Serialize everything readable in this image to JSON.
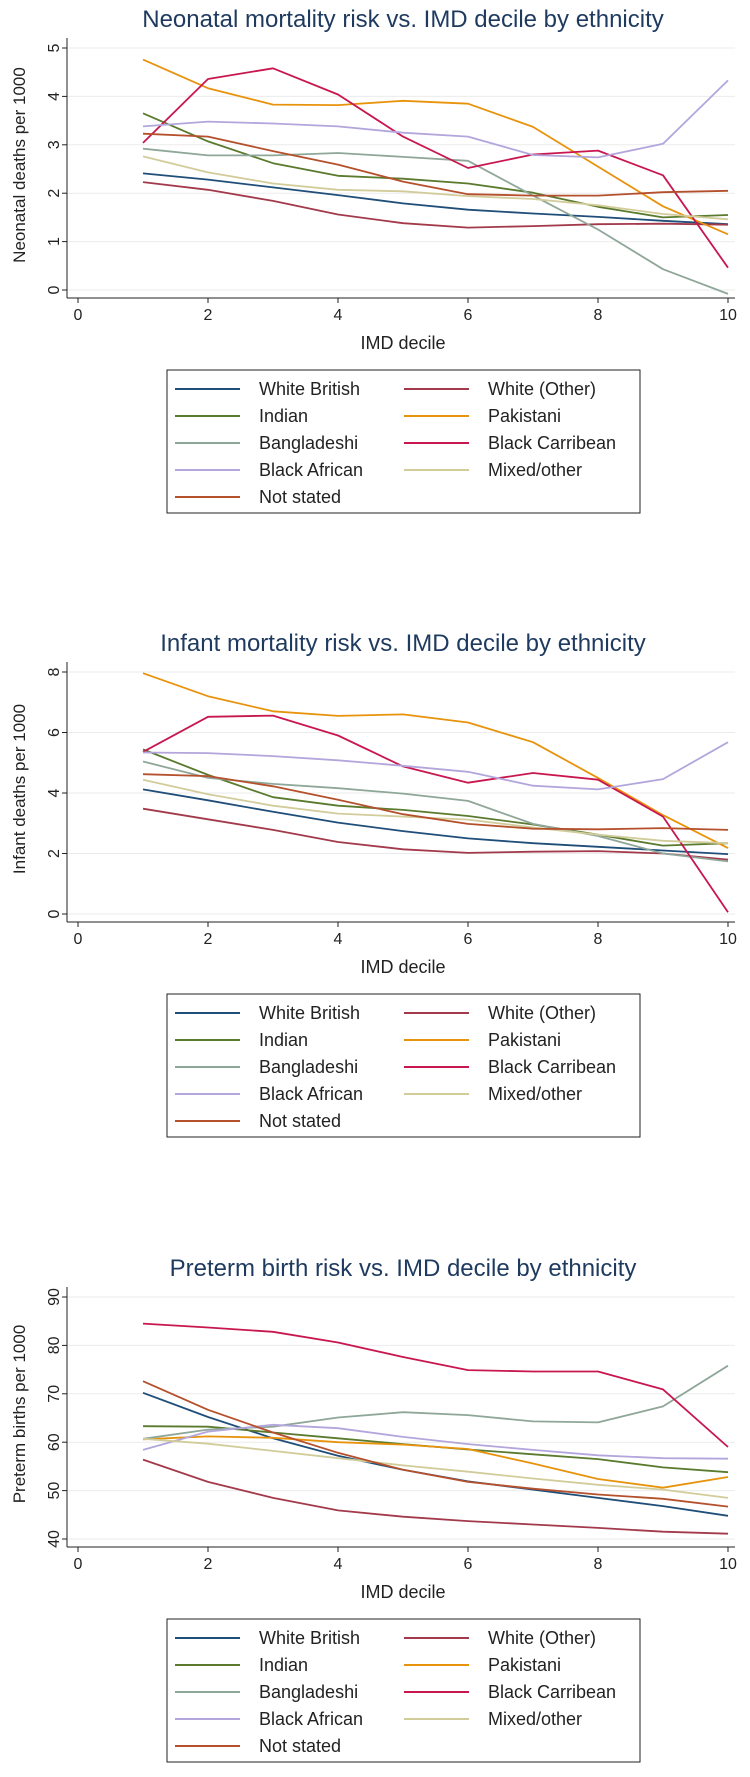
{
  "x_ticks": [
    0,
    2,
    4,
    6,
    8,
    10
  ],
  "legend_names": [
    "White British",
    "White (Other)",
    "Indian",
    "Pakistani",
    "Bangladeshi",
    "Black Carribean",
    "Black African",
    "Mixed/other",
    "Not stated"
  ],
  "colors": {
    "White British": "#1f4e79",
    "White (Other)": "#a33a4c",
    "Indian": "#5a7a2e",
    "Pakistani": "#e8930c",
    "Bangladeshi": "#8fa799",
    "Black Carribean": "#c8174f",
    "Black African": "#b3a6dc",
    "Mixed/other": "#d2cc9a",
    "Not stated": "#b5502d"
  },
  "chart_data": [
    {
      "type": "line",
      "title": "Neonatal mortality risk vs. IMD decile by ethnicity",
      "xlabel": "IMD decile",
      "ylabel": "Neonatal deaths per 1000",
      "xlim": [
        0,
        10
      ],
      "ylim": [
        0,
        5
      ],
      "yticks": [
        0,
        1,
        2,
        3,
        4,
        5
      ],
      "x": [
        1,
        2,
        3,
        4,
        5,
        6,
        7,
        8,
        9,
        10
      ],
      "series": [
        {
          "name": "White British",
          "values": [
            2.41,
            2.28,
            2.12,
            1.96,
            1.79,
            1.66,
            1.58,
            1.51,
            1.43,
            1.36
          ]
        },
        {
          "name": "White (Other)",
          "values": [
            2.23,
            2.07,
            1.84,
            1.56,
            1.38,
            1.29,
            1.32,
            1.36,
            1.37,
            1.35
          ]
        },
        {
          "name": "Indian",
          "values": [
            3.65,
            3.07,
            2.62,
            2.36,
            2.3,
            2.2,
            2.01,
            1.72,
            1.5,
            1.55
          ]
        },
        {
          "name": "Pakistani",
          "values": [
            4.76,
            4.17,
            3.83,
            3.82,
            3.91,
            3.85,
            3.37,
            2.55,
            1.73,
            1.15
          ]
        },
        {
          "name": "Bangladeshi",
          "values": [
            2.92,
            2.78,
            2.78,
            2.83,
            2.75,
            2.67,
            1.95,
            1.25,
            0.43,
            -0.08
          ]
        },
        {
          "name": "Black Carribean",
          "values": [
            3.04,
            4.36,
            4.58,
            4.04,
            3.17,
            2.52,
            2.8,
            2.88,
            2.37,
            0.46
          ]
        },
        {
          "name": "Black African",
          "values": [
            3.38,
            3.48,
            3.44,
            3.38,
            3.25,
            3.17,
            2.79,
            2.74,
            3.02,
            4.33
          ]
        },
        {
          "name": "Mixed/other",
          "values": [
            2.76,
            2.43,
            2.2,
            2.07,
            2.04,
            1.94,
            1.88,
            1.75,
            1.57,
            1.46
          ]
        },
        {
          "name": "Not stated",
          "values": [
            3.23,
            3.17,
            2.87,
            2.59,
            2.24,
            1.98,
            1.95,
            1.95,
            2.02,
            2.05
          ]
        }
      ]
    },
    {
      "type": "line",
      "title": "Infant mortality risk vs. IMD decile by ethnicity",
      "xlabel": "IMD decile",
      "ylabel": "Infant deaths per 1000",
      "xlim": [
        0,
        10
      ],
      "ylim": [
        0,
        8
      ],
      "yticks": [
        0,
        2,
        4,
        6,
        8
      ],
      "x": [
        1,
        2,
        3,
        4,
        5,
        6,
        7,
        8,
        9,
        10
      ],
      "series": [
        {
          "name": "White British",
          "values": [
            4.12,
            3.76,
            3.38,
            3.02,
            2.74,
            2.5,
            2.34,
            2.22,
            2.1,
            1.98
          ]
        },
        {
          "name": "White (Other)",
          "values": [
            3.48,
            3.13,
            2.78,
            2.38,
            2.14,
            2.02,
            2.06,
            2.08,
            2.0,
            1.8
          ]
        },
        {
          "name": "Indian",
          "values": [
            5.44,
            4.6,
            3.86,
            3.58,
            3.44,
            3.24,
            2.96,
            2.62,
            2.26,
            2.34
          ]
        },
        {
          "name": "Pakistani",
          "values": [
            7.96,
            7.2,
            6.7,
            6.55,
            6.6,
            6.33,
            5.68,
            4.5,
            3.27,
            2.18
          ]
        },
        {
          "name": "Bangladeshi",
          "values": [
            5.04,
            4.5,
            4.3,
            4.16,
            3.98,
            3.74,
            2.98,
            2.58,
            2.0,
            1.74
          ]
        },
        {
          "name": "Black Carribean",
          "values": [
            5.36,
            6.52,
            6.56,
            5.9,
            4.88,
            4.34,
            4.66,
            4.44,
            3.22,
            0.06
          ]
        },
        {
          "name": "Black African",
          "values": [
            5.34,
            5.32,
            5.22,
            5.08,
            4.9,
            4.7,
            4.24,
            4.12,
            4.46,
            5.68
          ]
        },
        {
          "name": "Mixed/other",
          "values": [
            4.44,
            3.96,
            3.58,
            3.32,
            3.22,
            3.12,
            2.86,
            2.62,
            2.42,
            2.34
          ]
        },
        {
          "name": "Not stated",
          "values": [
            4.62,
            4.56,
            4.22,
            3.78,
            3.3,
            2.98,
            2.82,
            2.8,
            2.84,
            2.78
          ]
        }
      ]
    },
    {
      "type": "line",
      "title": "Preterm birth risk vs. IMD decile by ethnicity",
      "xlabel": "IMD decile",
      "ylabel": "Preterm births per 1000",
      "xlim": [
        0,
        10
      ],
      "ylim": [
        40,
        90
      ],
      "yticks": [
        40,
        50,
        60,
        70,
        80,
        90
      ],
      "x": [
        1,
        2,
        3,
        4,
        5,
        6,
        7,
        8,
        9,
        10
      ],
      "series": [
        {
          "name": "White British",
          "values": [
            70.2,
            65.2,
            60.8,
            57.2,
            54.3,
            51.9,
            50.2,
            48.5,
            46.8,
            44.8
          ]
        },
        {
          "name": "White (Other)",
          "values": [
            56.4,
            51.8,
            48.5,
            45.9,
            44.6,
            43.7,
            43.0,
            42.3,
            41.5,
            41.1
          ]
        },
        {
          "name": "Indian",
          "values": [
            63.3,
            63.2,
            62.0,
            60.8,
            59.6,
            58.5,
            57.5,
            56.5,
            54.8,
            53.8
          ]
        },
        {
          "name": "Pakistani",
          "values": [
            60.6,
            61.2,
            60.9,
            60.0,
            59.5,
            58.6,
            55.6,
            52.4,
            50.6,
            52.8
          ]
        },
        {
          "name": "Bangladeshi",
          "values": [
            60.7,
            62.6,
            63.2,
            65.1,
            66.2,
            65.6,
            64.3,
            64.1,
            67.4,
            75.8
          ]
        },
        {
          "name": "Black Carribean",
          "values": [
            84.5,
            83.7,
            82.8,
            80.6,
            77.6,
            74.9,
            74.6,
            74.6,
            70.9,
            59.0
          ]
        },
        {
          "name": "Black African",
          "values": [
            58.4,
            62.2,
            63.6,
            62.9,
            61.1,
            59.6,
            58.4,
            57.3,
            56.7,
            56.6
          ]
        },
        {
          "name": "Mixed/other",
          "values": [
            60.7,
            59.7,
            58.2,
            56.7,
            55.2,
            53.9,
            52.5,
            51.2,
            50.2,
            48.5
          ]
        },
        {
          "name": "Not stated",
          "values": [
            72.6,
            66.7,
            62.0,
            57.8,
            54.3,
            51.8,
            50.4,
            49.2,
            48.3,
            46.7
          ]
        }
      ]
    }
  ]
}
